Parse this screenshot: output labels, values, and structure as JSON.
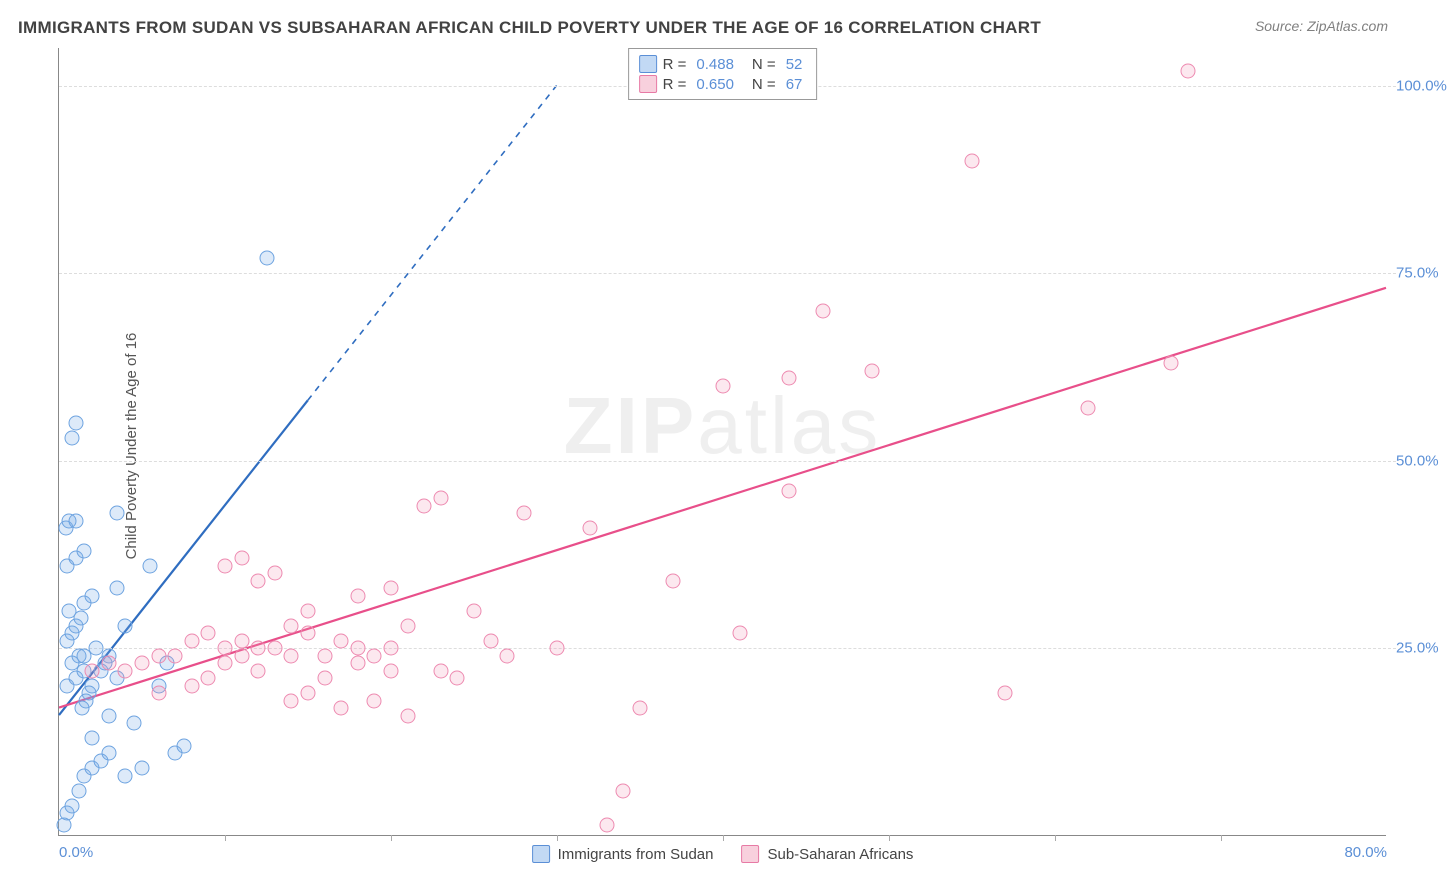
{
  "title": "IMMIGRANTS FROM SUDAN VS SUBSAHARAN AFRICAN CHILD POVERTY UNDER THE AGE OF 16 CORRELATION CHART",
  "source": "Source: ZipAtlas.com",
  "ylabel": "Child Poverty Under the Age of 16",
  "watermark_a": "ZIP",
  "watermark_b": "atlas",
  "chart": {
    "type": "scatter",
    "xlim": [
      0,
      80
    ],
    "ylim": [
      0,
      105
    ],
    "xticks": [
      0,
      80
    ],
    "xtick_labels": [
      "0.0%",
      "80.0%"
    ],
    "xtick_marks": [
      10,
      20,
      30,
      40,
      50,
      60,
      70
    ],
    "yticks": [
      25,
      50,
      75,
      100
    ],
    "ytick_labels": [
      "25.0%",
      "50.0%",
      "75.0%",
      "100.0%"
    ],
    "grid_color": "#dddddd",
    "background_color": "#ffffff",
    "axis_color": "#888888",
    "tick_label_color": "#5b8fd6",
    "series": [
      {
        "name": "Immigrants from Sudan",
        "color_fill": "rgba(120,170,230,0.25)",
        "color_stroke": "#6da3e0",
        "trend_color": "#2f6dc0",
        "R": "0.488",
        "N": "52",
        "trend": {
          "x1": 0,
          "y1": 16,
          "x2": 15,
          "y2": 58,
          "dash_x2": 30,
          "dash_y2": 100
        },
        "points": [
          [
            0.3,
            1.5
          ],
          [
            0.5,
            3
          ],
          [
            0.8,
            4
          ],
          [
            1.2,
            6
          ],
          [
            1.5,
            8
          ],
          [
            2.0,
            9
          ],
          [
            2.5,
            10
          ],
          [
            3.0,
            11
          ],
          [
            2.0,
            13
          ],
          [
            0.5,
            20
          ],
          [
            1.0,
            21
          ],
          [
            1.5,
            22
          ],
          [
            0.8,
            23
          ],
          [
            1.2,
            24
          ],
          [
            1.5,
            24
          ],
          [
            0.5,
            26
          ],
          [
            0.8,
            27
          ],
          [
            1.0,
            28
          ],
          [
            1.3,
            29
          ],
          [
            0.6,
            30
          ],
          [
            1.5,
            31
          ],
          [
            2.0,
            32
          ],
          [
            3.5,
            33
          ],
          [
            0.5,
            36
          ],
          [
            1.0,
            37
          ],
          [
            1.5,
            38
          ],
          [
            0.4,
            41
          ],
          [
            0.6,
            42
          ],
          [
            1.0,
            42
          ],
          [
            3.5,
            43
          ],
          [
            6.0,
            20
          ],
          [
            7.0,
            11
          ],
          [
            7.5,
            12
          ],
          [
            5.0,
            9
          ],
          [
            4.0,
            8
          ],
          [
            0.8,
            53
          ],
          [
            1.0,
            55
          ],
          [
            12.5,
            77
          ],
          [
            5.5,
            36
          ],
          [
            4.0,
            28
          ],
          [
            3.0,
            24
          ],
          [
            2.5,
            22
          ],
          [
            2.0,
            20
          ],
          [
            1.8,
            19
          ],
          [
            1.6,
            18
          ],
          [
            1.4,
            17
          ],
          [
            3.0,
            16
          ],
          [
            4.5,
            15
          ],
          [
            3.5,
            21
          ],
          [
            2.8,
            23
          ],
          [
            2.2,
            25
          ],
          [
            6.5,
            23
          ]
        ]
      },
      {
        "name": "Sub-Saharan Africans",
        "color_fill": "rgba(240,150,180,0.22)",
        "color_stroke": "#ed8ab0",
        "trend_color": "#e84f8a",
        "R": "0.650",
        "N": "67",
        "trend": {
          "x1": 0,
          "y1": 17,
          "x2": 80,
          "y2": 73
        },
        "points": [
          [
            2,
            22
          ],
          [
            3,
            23
          ],
          [
            4,
            22
          ],
          [
            5,
            23
          ],
          [
            6,
            24
          ],
          [
            7,
            24
          ],
          [
            8,
            26
          ],
          [
            9,
            27
          ],
          [
            10,
            25
          ],
          [
            11,
            24
          ],
          [
            12,
            25
          ],
          [
            6,
            19
          ],
          [
            8,
            20
          ],
          [
            9,
            21
          ],
          [
            10,
            23
          ],
          [
            11,
            26
          ],
          [
            13,
            25
          ],
          [
            10,
            36
          ],
          [
            11,
            37
          ],
          [
            12,
            34
          ],
          [
            14,
            28
          ],
          [
            15,
            27
          ],
          [
            16,
            24
          ],
          [
            17,
            26
          ],
          [
            18,
            25
          ],
          [
            19,
            24
          ],
          [
            20,
            25
          ],
          [
            14,
            18
          ],
          [
            15,
            19
          ],
          [
            17,
            17
          ],
          [
            19,
            18
          ],
          [
            21,
            16
          ],
          [
            18,
            32
          ],
          [
            20,
            33
          ],
          [
            21,
            28
          ],
          [
            22,
            44
          ],
          [
            23,
            45
          ],
          [
            25,
            30
          ],
          [
            26,
            26
          ],
          [
            27,
            24
          ],
          [
            28,
            43
          ],
          [
            30,
            25
          ],
          [
            32,
            41
          ],
          [
            33,
            1.5
          ],
          [
            34,
            6
          ],
          [
            35,
            17
          ],
          [
            37,
            34
          ],
          [
            40,
            60
          ],
          [
            41,
            27
          ],
          [
            44,
            61
          ],
          [
            44,
            46
          ],
          [
            46,
            70
          ],
          [
            49,
            62
          ],
          [
            57,
            19
          ],
          [
            62,
            57
          ],
          [
            67,
            63
          ],
          [
            68,
            102
          ],
          [
            55,
            90
          ],
          [
            13,
            35
          ],
          [
            15,
            30
          ],
          [
            16,
            21
          ],
          [
            12,
            22
          ],
          [
            14,
            24
          ],
          [
            18,
            23
          ],
          [
            20,
            22
          ],
          [
            23,
            22
          ],
          [
            24,
            21
          ]
        ]
      }
    ]
  },
  "legend_top_rows": [
    {
      "sw": "blue",
      "r_label": "R =",
      "r": "0.488",
      "n_label": "N =",
      "n": "52"
    },
    {
      "sw": "pink",
      "r_label": "R =",
      "r": "0.650",
      "n_label": "N =",
      "n": "67"
    }
  ],
  "legend_bottom": [
    {
      "sw": "blue",
      "label": "Immigrants from Sudan"
    },
    {
      "sw": "pink",
      "label": "Sub-Saharan Africans"
    }
  ]
}
